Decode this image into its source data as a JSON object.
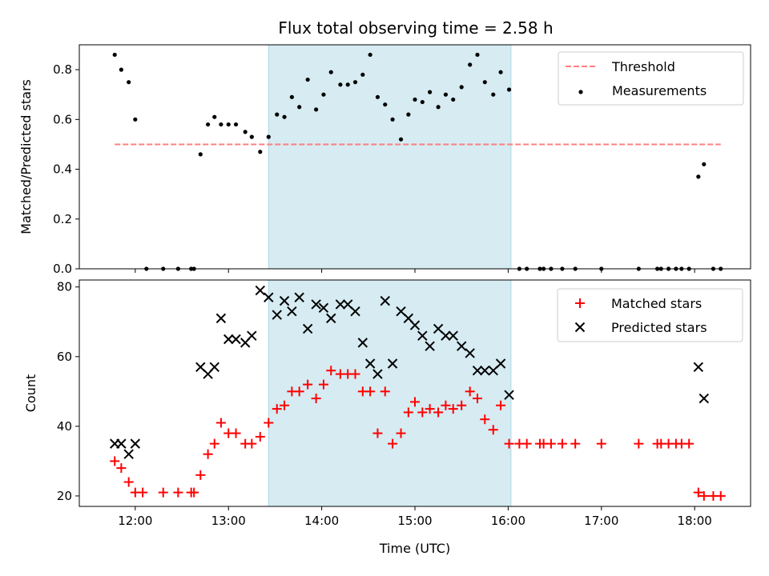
{
  "chart_data": [
    {
      "type": "scatter",
      "title": "Flux total observing time = 2.58 h",
      "xlabel": "",
      "ylabel": "Matched/Predicted stars",
      "x_unit": "hours UTC",
      "xlim": [
        11.4,
        18.6
      ],
      "ylim": [
        0,
        0.9
      ],
      "yticks": [
        0.0,
        0.2,
        0.4,
        0.6,
        0.8
      ],
      "ytick_labels": [
        "0.0",
        "0.2",
        "0.4",
        "0.6",
        "0.8"
      ],
      "shaded_span": [
        13.43,
        16.03
      ],
      "shaded_color": "#add8e6",
      "legend_position": "top-right",
      "threshold": {
        "name": "Threshold",
        "value": 0.5,
        "x_range": [
          11.78,
          18.28
        ],
        "color": "#ff7f7f"
      },
      "series": [
        {
          "name": "Measurements",
          "color": "#000000",
          "x": [
            11.78,
            11.85,
            11.93,
            12.0,
            12.12,
            12.3,
            12.46,
            12.6,
            12.63,
            12.7,
            12.78,
            12.85,
            12.92,
            13.0,
            13.08,
            13.18,
            13.25,
            13.34,
            13.43,
            13.52,
            13.6,
            13.68,
            13.76,
            13.85,
            13.94,
            14.02,
            14.1,
            14.2,
            14.28,
            14.36,
            14.44,
            14.52,
            14.6,
            14.68,
            14.76,
            14.85,
            14.93,
            15.0,
            15.08,
            15.16,
            15.25,
            15.33,
            15.41,
            15.5,
            15.59,
            15.67,
            15.75,
            15.84,
            15.92,
            16.01,
            16.12,
            16.2,
            16.34,
            16.38,
            16.46,
            16.58,
            16.72,
            17.0,
            17.4,
            17.6,
            17.64,
            17.72,
            17.8,
            17.86,
            17.94,
            18.04,
            18.1,
            18.2,
            18.28
          ],
          "y": [
            0.86,
            0.8,
            0.75,
            0.6,
            0.0,
            0.0,
            0.0,
            0.0,
            0.0,
            0.46,
            0.58,
            0.61,
            0.58,
            0.58,
            0.58,
            0.55,
            0.53,
            0.47,
            0.53,
            0.62,
            0.61,
            0.69,
            0.65,
            0.76,
            0.64,
            0.7,
            0.79,
            0.74,
            0.74,
            0.75,
            0.78,
            0.86,
            0.69,
            0.66,
            0.6,
            0.52,
            0.62,
            0.68,
            0.67,
            0.71,
            0.65,
            0.7,
            0.68,
            0.73,
            0.82,
            0.86,
            0.75,
            0.7,
            0.79,
            0.72,
            0.0,
            0.0,
            0.0,
            0.0,
            0.0,
            0.0,
            0.0,
            0.0,
            0.0,
            0.0,
            0.0,
            0.0,
            0.0,
            0.0,
            0.0,
            0.37,
            0.42,
            0.0,
            0.0
          ]
        }
      ],
      "legend": [
        {
          "label": "Threshold",
          "marker": "dashed-line",
          "color": "#ff7f7f"
        },
        {
          "label": "Measurements",
          "marker": "dot",
          "color": "#000000"
        }
      ]
    },
    {
      "type": "scatter",
      "title": "",
      "xlabel": "Time (UTC)",
      "ylabel": "Count",
      "x_unit": "hours UTC",
      "xlim": [
        11.4,
        18.6
      ],
      "ylim": [
        17,
        82
      ],
      "xticks": [
        12,
        13,
        14,
        15,
        16,
        17,
        18
      ],
      "xtick_labels": [
        "12:00",
        "13:00",
        "14:00",
        "15:00",
        "16:00",
        "17:00",
        "18:00"
      ],
      "yticks": [
        20,
        40,
        60,
        80
      ],
      "ytick_labels": [
        "20",
        "40",
        "60",
        "80"
      ],
      "shaded_span": [
        13.43,
        16.03
      ],
      "shaded_color": "#add8e6",
      "legend_position": "top-right",
      "series": [
        {
          "name": "Matched stars",
          "marker": "plus",
          "color": "#ff0000",
          "x": [
            11.78,
            11.85,
            11.93,
            12.0,
            12.08,
            12.3,
            12.46,
            12.6,
            12.63,
            12.7,
            12.78,
            12.85,
            12.92,
            13.0,
            13.08,
            13.18,
            13.25,
            13.34,
            13.43,
            13.52,
            13.6,
            13.68,
            13.76,
            13.85,
            13.94,
            14.02,
            14.1,
            14.2,
            14.28,
            14.36,
            14.44,
            14.52,
            14.6,
            14.68,
            14.76,
            14.85,
            14.93,
            15.0,
            15.08,
            15.16,
            15.25,
            15.33,
            15.41,
            15.5,
            15.59,
            15.67,
            15.75,
            15.84,
            15.92,
            16.01,
            16.12,
            16.2,
            16.34,
            16.38,
            16.46,
            16.58,
            16.72,
            17.0,
            17.4,
            17.6,
            17.64,
            17.72,
            17.8,
            17.86,
            17.94,
            18.04,
            18.1,
            18.2,
            18.28
          ],
          "y": [
            30,
            28,
            24,
            21,
            21,
            21,
            21,
            21,
            21,
            26,
            32,
            35,
            41,
            38,
            38,
            35,
            35,
            37,
            41,
            45,
            46,
            50,
            50,
            52,
            48,
            52,
            56,
            55,
            55,
            55,
            50,
            50,
            38,
            50,
            35,
            38,
            44,
            47,
            44,
            45,
            44,
            46,
            45,
            46,
            50,
            48,
            42,
            39,
            46,
            35,
            35,
            35,
            35,
            35,
            35,
            35,
            35,
            35,
            35,
            35,
            35,
            35,
            35,
            35,
            35,
            21,
            20,
            20,
            20
          ]
        },
        {
          "name": "Predicted stars",
          "marker": "x",
          "color": "#000000",
          "x": [
            11.78,
            11.85,
            11.93,
            12.0,
            12.7,
            12.78,
            12.85,
            12.92,
            13.0,
            13.08,
            13.18,
            13.25,
            13.34,
            13.43,
            13.52,
            13.6,
            13.68,
            13.76,
            13.85,
            13.94,
            14.02,
            14.1,
            14.2,
            14.28,
            14.36,
            14.44,
            14.52,
            14.6,
            14.68,
            14.76,
            14.85,
            14.93,
            15.0,
            15.08,
            15.16,
            15.25,
            15.33,
            15.41,
            15.5,
            15.59,
            15.67,
            15.75,
            15.84,
            15.92,
            16.01,
            18.04,
            18.1
          ],
          "y": [
            35,
            35,
            32,
            35,
            57,
            55,
            57,
            71,
            65,
            65,
            64,
            66,
            79,
            77,
            72,
            76,
            73,
            77,
            68,
            75,
            74,
            71,
            75,
            75,
            73,
            64,
            58,
            55,
            76,
            58,
            73,
            71,
            69,
            66,
            63,
            68,
            66,
            66,
            63,
            61,
            56,
            56,
            56,
            58,
            49,
            57,
            48
          ]
        }
      ],
      "legend": [
        {
          "label": "Matched stars",
          "marker": "plus",
          "color": "#ff0000"
        },
        {
          "label": "Predicted stars",
          "marker": "x",
          "color": "#000000"
        }
      ]
    }
  ]
}
